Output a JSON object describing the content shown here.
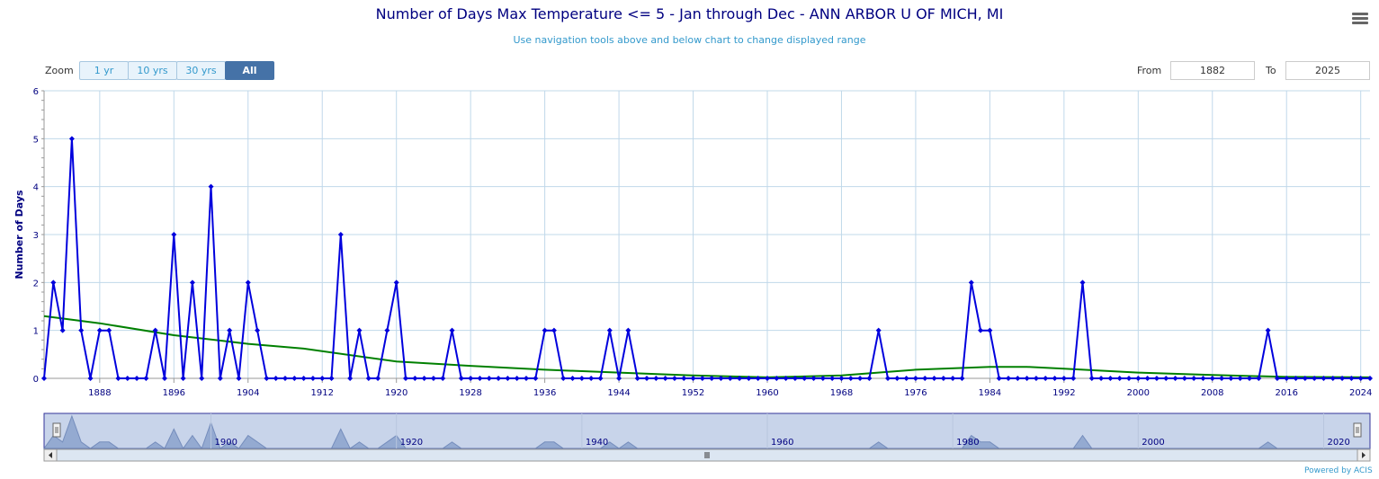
{
  "header": {
    "title": "Number of Days Max Temperature <= 5 - Jan through Dec - ANN ARBOR U OF MICH, MI",
    "subtitle": "Use navigation tools above and below chart to change displayed range"
  },
  "zoom": {
    "label": "Zoom",
    "buttons": [
      {
        "label": "1 yr",
        "active": false
      },
      {
        "label": "10 yrs",
        "active": false
      },
      {
        "label": "30 yrs",
        "active": false
      },
      {
        "label": "All",
        "active": true
      }
    ]
  },
  "range": {
    "from_label": "From",
    "from_value": "1882",
    "to_label": "To",
    "to_value": "2025"
  },
  "credit": "Powered by ACIS",
  "colors": {
    "series": "#0000dd",
    "trend": "#008000",
    "grid": "#c0d8ea",
    "axis": "#000080",
    "navigator_fill": "#c8d4ea"
  },
  "chart_data": {
    "type": "line",
    "title": "Number of Days Max Temperature <= 5 - Jan through Dec - ANN ARBOR U OF MICH, MI",
    "ylabel": "Number of Days",
    "xlabel": "",
    "xlim": [
      1882,
      2025
    ],
    "ylim": [
      0,
      6
    ],
    "yticks": [
      0,
      1,
      2,
      3,
      4,
      5,
      6
    ],
    "xticks": [
      1888,
      1896,
      1904,
      1912,
      1920,
      1928,
      1936,
      1944,
      1952,
      1960,
      1968,
      1976,
      1984,
      1992,
      2000,
      2008,
      2016,
      2024
    ],
    "grid": true,
    "x": [
      1882,
      1883,
      1884,
      1885,
      1886,
      1887,
      1888,
      1889,
      1890,
      1891,
      1892,
      1893,
      1894,
      1895,
      1896,
      1897,
      1898,
      1899,
      1900,
      1901,
      1902,
      1903,
      1904,
      1905,
      1906,
      1907,
      1908,
      1909,
      1910,
      1911,
      1912,
      1913,
      1914,
      1915,
      1916,
      1917,
      1918,
      1919,
      1920,
      1921,
      1922,
      1923,
      1924,
      1925,
      1926,
      1927,
      1928,
      1929,
      1930,
      1931,
      1932,
      1933,
      1934,
      1935,
      1936,
      1937,
      1938,
      1939,
      1940,
      1941,
      1942,
      1943,
      1944,
      1945,
      1946,
      1947,
      1948,
      1949,
      1950,
      1951,
      1952,
      1953,
      1954,
      1955,
      1956,
      1957,
      1958,
      1959,
      1960,
      1961,
      1962,
      1963,
      1964,
      1965,
      1966,
      1967,
      1968,
      1969,
      1970,
      1971,
      1972,
      1973,
      1974,
      1975,
      1976,
      1977,
      1978,
      1979,
      1980,
      1981,
      1982,
      1983,
      1984,
      1985,
      1986,
      1987,
      1988,
      1989,
      1990,
      1991,
      1992,
      1993,
      1994,
      1995,
      1996,
      1997,
      1998,
      1999,
      2000,
      2001,
      2002,
      2003,
      2004,
      2005,
      2006,
      2007,
      2008,
      2009,
      2010,
      2011,
      2012,
      2013,
      2014,
      2015,
      2016,
      2017,
      2018,
      2019,
      2020,
      2021,
      2022,
      2023,
      2024,
      2025
    ],
    "series": [
      {
        "values": [
          0,
          2,
          1,
          5,
          1,
          0,
          1,
          1,
          0,
          0,
          0,
          0,
          1,
          0,
          3,
          0,
          2,
          0,
          4,
          0,
          1,
          0,
          2,
          1,
          0,
          0,
          0,
          0,
          0,
          0,
          0,
          0,
          3,
          0,
          1,
          0,
          0,
          1,
          2,
          0,
          0,
          0,
          0,
          0,
          1,
          0,
          0,
          0,
          0,
          0,
          0,
          0,
          0,
          0,
          1,
          1,
          0,
          0,
          0,
          0,
          0,
          1,
          0,
          1,
          0,
          0,
          0,
          0,
          0,
          0,
          0,
          0,
          0,
          0,
          0,
          0,
          0,
          0,
          0,
          0,
          0,
          0,
          0,
          0,
          0,
          0,
          0,
          0,
          0,
          0,
          1,
          0,
          0,
          0,
          0,
          0,
          0,
          0,
          0,
          0,
          2,
          1,
          1,
          0,
          0,
          0,
          0,
          0,
          0,
          0,
          0,
          0,
          2,
          0,
          0,
          0,
          0,
          0,
          0,
          0,
          0,
          0,
          0,
          0,
          0,
          0,
          0,
          0,
          0,
          0,
          0,
          0,
          1,
          0,
          0,
          0,
          0,
          0,
          0,
          0,
          0,
          0,
          0,
          0
        ]
      },
      {
        "values": [
          [
            1882,
            1.3
          ],
          [
            1888,
            1.15
          ],
          [
            1896,
            0.9
          ],
          [
            1904,
            0.72
          ],
          [
            1910,
            0.62
          ],
          [
            1920,
            0.35
          ],
          [
            1928,
            0.26
          ],
          [
            1936,
            0.18
          ],
          [
            1944,
            0.12
          ],
          [
            1952,
            0.06
          ],
          [
            1960,
            0.02
          ],
          [
            1968,
            0.06
          ],
          [
            1976,
            0.18
          ],
          [
            1984,
            0.24
          ],
          [
            1988,
            0.24
          ],
          [
            1992,
            0.2
          ],
          [
            2000,
            0.12
          ],
          [
            2008,
            0.07
          ],
          [
            2016,
            0.03
          ],
          [
            2025,
            0.02
          ]
        ]
      }
    ],
    "navigator": {
      "ticks": [
        1900,
        1920,
        1940,
        1960,
        1980,
        2000,
        2020
      ],
      "range": [
        1882,
        2025
      ]
    }
  }
}
